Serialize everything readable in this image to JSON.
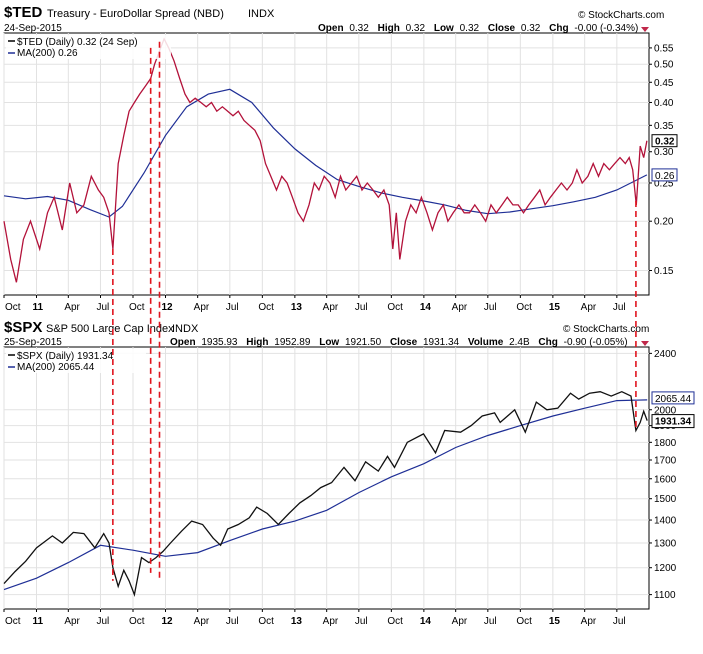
{
  "panels": [
    {
      "symbol": "$TED",
      "name": "Treasury - EuroDollar Spread (NBD)",
      "exchange": "INDX",
      "date": "24-Sep-2015",
      "brand": "© StockCharts.com",
      "ohlc": {
        "open_label": "Open",
        "open": "0.32",
        "high_label": "High",
        "high": "0.32",
        "low_label": "Low",
        "low": "0.32",
        "close_label": "Close",
        "close": "0.32",
        "chg_label": "Chg",
        "chg": "-0.00 (-0.34%)"
      },
      "legend": {
        "price": "$TED (Daily) 0.32 (24 Sep)",
        "ma": "MA(200) 0.26"
      },
      "last_value": "0.32",
      "ma_value": "0.26"
    },
    {
      "symbol": "$SPX",
      "name": "S&P 500 Large Cap Index",
      "exchange": "INDX",
      "date": "25-Sep-2015",
      "brand": "© StockCharts.com",
      "ohlc": {
        "open_label": "Open",
        "open": "1935.93",
        "high_label": "High",
        "high": "1952.89",
        "low_label": "Low",
        "low": "1921.50",
        "close_label": "Close",
        "close": "1931.34",
        "volume_label": "Volume",
        "volume": "2.4B",
        "chg_label": "Chg",
        "chg": "-0.90 (-0.05%)"
      },
      "legend": {
        "price": "$SPX (Daily) 1931.34",
        "ma": "MA(200) 2065.44"
      },
      "last_value": "1931.34",
      "ma_value": "2065.44"
    }
  ],
  "chart_data": [
    {
      "type": "line",
      "title": "$TED Treasury - EuroDollar Spread (NBD)",
      "scale": "log",
      "ylim": [
        0.13,
        0.6
      ],
      "y_ticks": [
        "0.55",
        "0.50",
        "0.45",
        "0.40",
        "0.35",
        "0.30",
        "0.25",
        "0.20",
        "0.15"
      ],
      "x_ticks": [
        "Oct",
        "11",
        "Apr",
        "Jul",
        "Oct",
        "12",
        "Apr",
        "Jul",
        "Oct",
        "13",
        "Apr",
        "Jul",
        "Oct",
        "14",
        "Apr",
        "Jul",
        "Oct",
        "15",
        "Apr",
        "Jul"
      ],
      "x_range": [
        "2010-10-01",
        "2015-09-30"
      ],
      "series": [
        {
          "name": "$TED (Daily)",
          "x": [
            "2010-10-01",
            "2010-10-20",
            "2010-11-05",
            "2010-11-25",
            "2010-12-15",
            "2011-01-10",
            "2011-02-01",
            "2011-02-20",
            "2011-03-15",
            "2011-04-05",
            "2011-04-25",
            "2011-05-15",
            "2011-06-05",
            "2011-06-25",
            "2011-07-10",
            "2011-07-25",
            "2011-08-05",
            "2011-08-20",
            "2011-09-05",
            "2011-09-20",
            "2011-10-05",
            "2011-10-20",
            "2011-11-05",
            "2011-11-20",
            "2011-12-01",
            "2011-12-15",
            "2011-12-28",
            "2012-01-10",
            "2012-01-25",
            "2012-02-10",
            "2012-02-25",
            "2012-03-10",
            "2012-03-25",
            "2012-04-10",
            "2012-04-25",
            "2012-05-10",
            "2012-05-25",
            "2012-06-10",
            "2012-06-25",
            "2012-07-10",
            "2012-07-25",
            "2012-08-10",
            "2012-08-25",
            "2012-09-10",
            "2012-09-25",
            "2012-10-10",
            "2012-10-25",
            "2012-11-10",
            "2012-11-25",
            "2012-12-10",
            "2012-12-25",
            "2013-01-10",
            "2013-01-25",
            "2013-02-10",
            "2013-02-25",
            "2013-03-10",
            "2013-03-25",
            "2013-04-10",
            "2013-04-25",
            "2013-05-10",
            "2013-05-25",
            "2013-06-10",
            "2013-06-25",
            "2013-07-10",
            "2013-07-25",
            "2013-08-10",
            "2013-08-25",
            "2013-09-10",
            "2013-09-25",
            "2013-10-05",
            "2013-10-15",
            "2013-10-25",
            "2013-11-10",
            "2013-11-25",
            "2013-12-10",
            "2013-12-25",
            "2014-01-10",
            "2014-01-25",
            "2014-02-10",
            "2014-02-25",
            "2014-03-10",
            "2014-03-25",
            "2014-04-10",
            "2014-04-25",
            "2014-05-10",
            "2014-05-25",
            "2014-06-10",
            "2014-06-25",
            "2014-07-10",
            "2014-07-25",
            "2014-08-10",
            "2014-08-25",
            "2014-09-10",
            "2014-09-25",
            "2014-10-10",
            "2014-10-25",
            "2014-11-10",
            "2014-11-25",
            "2014-12-10",
            "2014-12-25",
            "2015-01-10",
            "2015-01-25",
            "2015-02-10",
            "2015-02-25",
            "2015-03-10",
            "2015-03-25",
            "2015-04-10",
            "2015-04-25",
            "2015-05-10",
            "2015-05-25",
            "2015-06-10",
            "2015-06-25",
            "2015-07-10",
            "2015-07-25",
            "2015-08-05",
            "2015-08-15",
            "2015-08-25",
            "2015-09-05",
            "2015-09-15",
            "2015-09-24"
          ],
          "values": [
            0.2,
            0.16,
            0.14,
            0.18,
            0.2,
            0.17,
            0.21,
            0.23,
            0.19,
            0.25,
            0.21,
            0.22,
            0.26,
            0.24,
            0.23,
            0.21,
            0.17,
            0.28,
            0.33,
            0.38,
            0.4,
            0.42,
            0.44,
            0.46,
            0.5,
            0.54,
            0.58,
            0.55,
            0.51,
            0.46,
            0.42,
            0.4,
            0.41,
            0.4,
            0.39,
            0.4,
            0.38,
            0.39,
            0.38,
            0.37,
            0.38,
            0.36,
            0.35,
            0.34,
            0.32,
            0.28,
            0.26,
            0.24,
            0.26,
            0.25,
            0.23,
            0.21,
            0.2,
            0.22,
            0.25,
            0.24,
            0.26,
            0.25,
            0.23,
            0.26,
            0.24,
            0.25,
            0.26,
            0.24,
            0.25,
            0.24,
            0.23,
            0.24,
            0.22,
            0.17,
            0.21,
            0.16,
            0.2,
            0.22,
            0.21,
            0.23,
            0.21,
            0.19,
            0.21,
            0.22,
            0.2,
            0.21,
            0.22,
            0.21,
            0.21,
            0.22,
            0.21,
            0.2,
            0.22,
            0.21,
            0.22,
            0.23,
            0.22,
            0.22,
            0.21,
            0.22,
            0.23,
            0.24,
            0.22,
            0.23,
            0.24,
            0.25,
            0.24,
            0.25,
            0.27,
            0.25,
            0.26,
            0.28,
            0.26,
            0.28,
            0.27,
            0.28,
            0.29,
            0.28,
            0.29,
            0.27,
            0.22,
            0.31,
            0.29,
            0.32
          ]
        },
        {
          "name": "MA(200)",
          "x": [
            "2010-10-01",
            "2010-12-01",
            "2011-02-01",
            "2011-04-01",
            "2011-06-01",
            "2011-07-25",
            "2011-09-01",
            "2011-11-01",
            "2012-01-01",
            "2012-03-01",
            "2012-05-01",
            "2012-07-01",
            "2012-09-01",
            "2012-11-01",
            "2013-01-01",
            "2013-03-01",
            "2013-05-01",
            "2013-07-01",
            "2013-09-01",
            "2013-11-01",
            "2014-01-01",
            "2014-03-01",
            "2014-05-01",
            "2014-07-01",
            "2014-09-01",
            "2014-11-01",
            "2015-01-01",
            "2015-03-01",
            "2015-05-01",
            "2015-07-01",
            "2015-09-24"
          ],
          "values": [
            0.232,
            0.228,
            0.231,
            0.226,
            0.214,
            0.205,
            0.218,
            0.265,
            0.33,
            0.39,
            0.42,
            0.432,
            0.4,
            0.345,
            0.305,
            0.277,
            0.255,
            0.245,
            0.236,
            0.23,
            0.225,
            0.22,
            0.213,
            0.209,
            0.211,
            0.215,
            0.219,
            0.224,
            0.23,
            0.24,
            0.262
          ]
        }
      ]
    },
    {
      "type": "line",
      "title": "$SPX S&P 500 Large Cap Index",
      "scale": "log",
      "ylim": [
        1050,
        2450
      ],
      "y_ticks": [
        "2400",
        "2000",
        "1900",
        "1800",
        "1700",
        "1600",
        "1500",
        "1400",
        "1300",
        "1200",
        "1100"
      ],
      "x_ticks": [
        "Oct",
        "11",
        "Apr",
        "Jul",
        "Oct",
        "12",
        "Apr",
        "Jul",
        "Oct",
        "13",
        "Apr",
        "Jul",
        "Oct",
        "14",
        "Apr",
        "Jul",
        "Oct",
        "15",
        "Apr",
        "Jul"
      ],
      "x_range": [
        "2010-10-01",
        "2015-09-30"
      ],
      "series": [
        {
          "name": "$SPX (Daily)",
          "x": [
            "2010-10-01",
            "2010-11-01",
            "2010-12-01",
            "2011-01-01",
            "2011-02-15",
            "2011-03-15",
            "2011-04-15",
            "2011-05-15",
            "2011-06-15",
            "2011-07-10",
            "2011-07-25",
            "2011-08-05",
            "2011-08-20",
            "2011-09-05",
            "2011-09-20",
            "2011-10-05",
            "2011-10-25",
            "2011-11-15",
            "2011-12-05",
            "2011-12-25",
            "2012-01-15",
            "2012-02-15",
            "2012-03-15",
            "2012-04-15",
            "2012-05-15",
            "2012-06-05",
            "2012-06-25",
            "2012-07-25",
            "2012-08-25",
            "2012-09-15",
            "2012-10-15",
            "2012-11-15",
            "2012-12-15",
            "2013-01-15",
            "2013-02-15",
            "2013-03-15",
            "2013-04-15",
            "2013-05-20",
            "2013-06-20",
            "2013-07-20",
            "2013-08-25",
            "2013-09-20",
            "2013-10-10",
            "2013-11-15",
            "2013-12-31",
            "2014-02-03",
            "2014-03-01",
            "2014-04-15",
            "2014-05-15",
            "2014-06-15",
            "2014-07-20",
            "2014-08-05",
            "2014-09-15",
            "2014-10-15",
            "2014-11-15",
            "2014-12-15",
            "2015-01-15",
            "2015-02-20",
            "2015-03-15",
            "2015-04-15",
            "2015-05-15",
            "2015-06-15",
            "2015-07-15",
            "2015-08-10",
            "2015-08-24",
            "2015-09-05",
            "2015-09-15",
            "2015-09-25"
          ],
          "values": [
            1140,
            1185,
            1225,
            1280,
            1330,
            1300,
            1345,
            1340,
            1280,
            1340,
            1300,
            1200,
            1130,
            1190,
            1150,
            1100,
            1240,
            1220,
            1240,
            1265,
            1300,
            1350,
            1395,
            1380,
            1320,
            1290,
            1360,
            1380,
            1410,
            1460,
            1430,
            1380,
            1430,
            1480,
            1515,
            1555,
            1580,
            1660,
            1590,
            1690,
            1640,
            1720,
            1660,
            1800,
            1850,
            1740,
            1870,
            1860,
            1900,
            1960,
            1980,
            1920,
            2000,
            1860,
            2050,
            2000,
            2010,
            2110,
            2070,
            2110,
            2120,
            2090,
            2120,
            2090,
            1870,
            1920,
            1990,
            1931
          ]
        },
        {
          "name": "MA(200)",
          "x": [
            "2010-10-01",
            "2011-01-01",
            "2011-04-01",
            "2011-07-01",
            "2011-10-01",
            "2012-01-01",
            "2012-04-01",
            "2012-07-01",
            "2012-10-01",
            "2013-01-01",
            "2013-04-01",
            "2013-07-01",
            "2013-10-01",
            "2014-01-01",
            "2014-04-01",
            "2014-07-01",
            "2014-10-01",
            "2015-01-01",
            "2015-04-01",
            "2015-07-01",
            "2015-09-25"
          ],
          "values": [
            1118,
            1160,
            1220,
            1290,
            1270,
            1245,
            1260,
            1310,
            1360,
            1395,
            1445,
            1530,
            1610,
            1680,
            1770,
            1840,
            1900,
            1960,
            2010,
            2060,
            2065
          ]
        }
      ]
    }
  ]
}
